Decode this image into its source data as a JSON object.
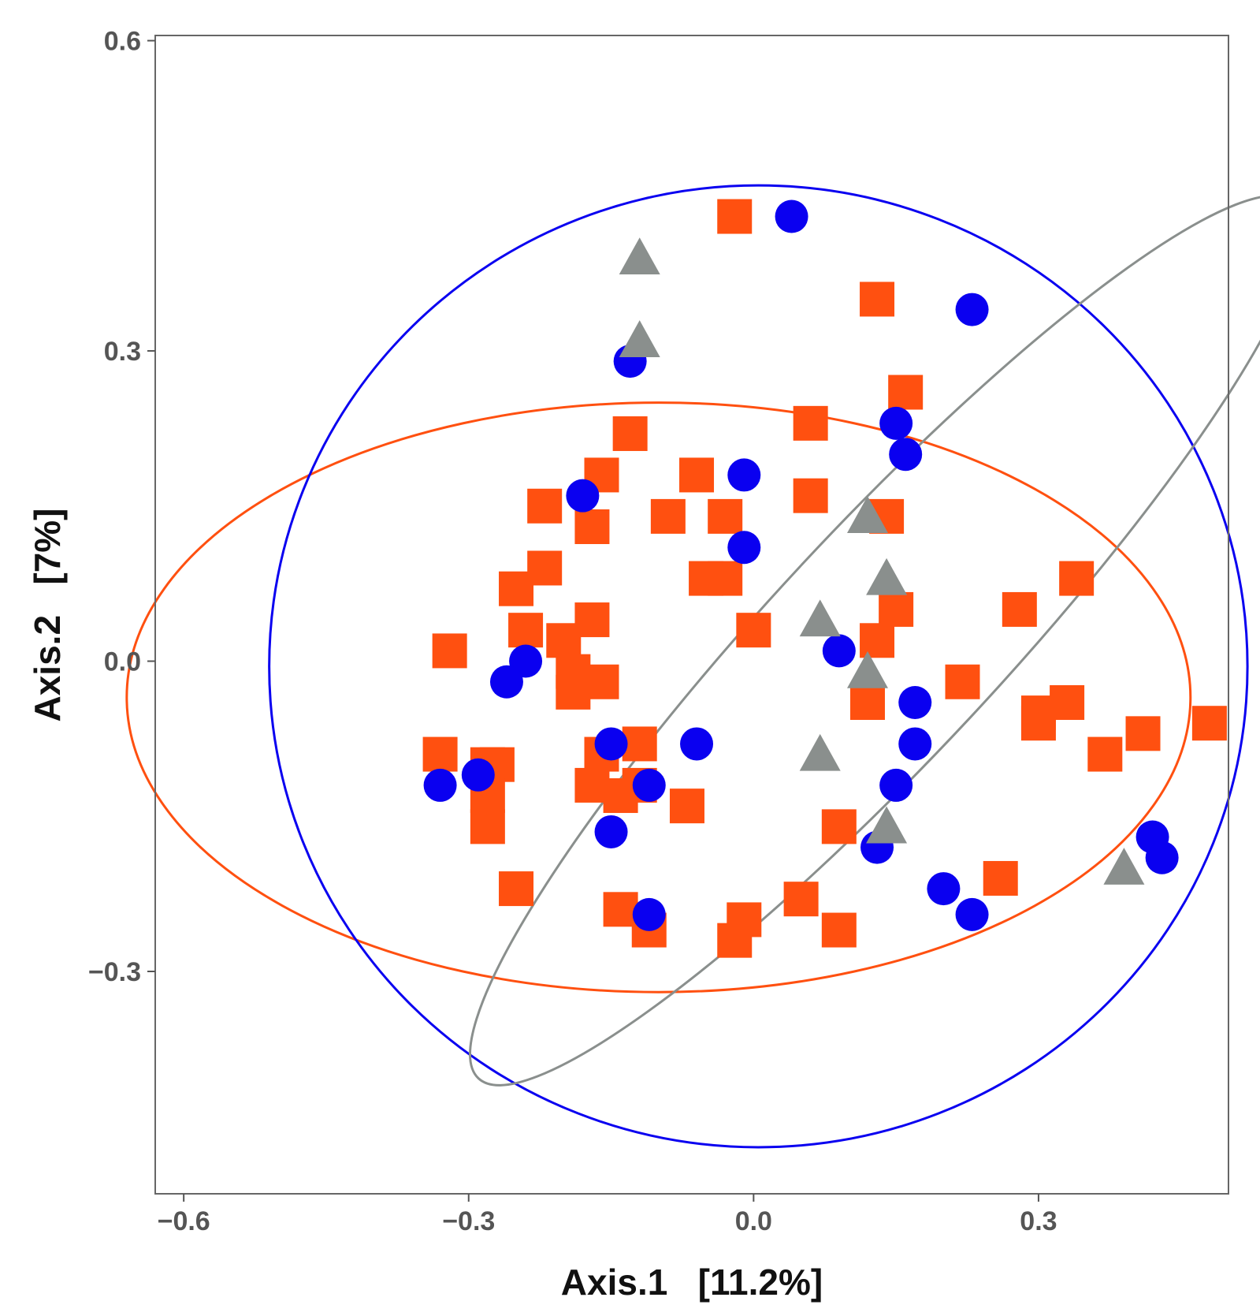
{
  "chart_data": {
    "type": "scatter",
    "title": "",
    "xlabel": "Axis.1   [11.2%]",
    "ylabel": "Axis.2   [7%]",
    "xlim": [
      -0.63,
      0.5
    ],
    "ylim": [
      -0.515,
      0.605
    ],
    "xticks": [
      -0.6,
      -0.3,
      0.0,
      0.3
    ],
    "xtick_labels": [
      "−0.6",
      "−0.3",
      "0.0",
      "0.3"
    ],
    "yticks": [
      0.6,
      0.3,
      0.0,
      -0.3
    ],
    "ytick_labels": [
      "0.6",
      "0.3",
      "0.0",
      "−0.3"
    ],
    "grid": false,
    "legend": "none",
    "series": [
      {
        "name": "square group",
        "marker": "square",
        "color": "#FF5010",
        "points": [
          [
            -0.02,
            0.43
          ],
          [
            0.13,
            0.35
          ],
          [
            0.16,
            0.26
          ],
          [
            0.06,
            0.23
          ],
          [
            -0.13,
            0.22
          ],
          [
            -0.16,
            0.18
          ],
          [
            -0.06,
            0.18
          ],
          [
            0.06,
            0.16
          ],
          [
            -0.22,
            0.15
          ],
          [
            -0.09,
            0.14
          ],
          [
            -0.03,
            0.14
          ],
          [
            0.14,
            0.14
          ],
          [
            -0.17,
            0.13
          ],
          [
            -0.22,
            0.09
          ],
          [
            0.34,
            0.08
          ],
          [
            -0.25,
            0.07
          ],
          [
            -0.05,
            0.08
          ],
          [
            -0.03,
            0.08
          ],
          [
            0.28,
            0.05
          ],
          [
            0.15,
            0.05
          ],
          [
            -0.17,
            0.04
          ],
          [
            -0.24,
            0.03
          ],
          [
            0.0,
            0.03
          ],
          [
            0.13,
            0.02
          ],
          [
            -0.2,
            0.02
          ],
          [
            -0.32,
            0.01
          ],
          [
            -0.19,
            -0.01
          ],
          [
            -0.16,
            -0.02
          ],
          [
            -0.19,
            -0.03
          ],
          [
            0.22,
            -0.02
          ],
          [
            0.12,
            -0.04
          ],
          [
            0.3,
            -0.05
          ],
          [
            0.33,
            -0.04
          ],
          [
            0.3,
            -0.06
          ],
          [
            0.41,
            -0.07
          ],
          [
            0.48,
            -0.06
          ],
          [
            -0.33,
            -0.09
          ],
          [
            -0.28,
            -0.1
          ],
          [
            -0.27,
            -0.1
          ],
          [
            -0.16,
            -0.09
          ],
          [
            -0.12,
            -0.08
          ],
          [
            0.37,
            -0.09
          ],
          [
            -0.17,
            -0.12
          ],
          [
            -0.14,
            -0.13
          ],
          [
            -0.12,
            -0.12
          ],
          [
            -0.07,
            -0.14
          ],
          [
            -0.28,
            -0.13
          ],
          [
            -0.28,
            -0.16
          ],
          [
            0.09,
            -0.16
          ],
          [
            -0.25,
            -0.22
          ],
          [
            0.26,
            -0.21
          ],
          [
            -0.14,
            -0.24
          ],
          [
            0.05,
            -0.23
          ],
          [
            -0.11,
            -0.26
          ],
          [
            -0.01,
            -0.25
          ],
          [
            -0.02,
            -0.27
          ],
          [
            0.09,
            -0.26
          ]
        ]
      },
      {
        "name": "circle group",
        "marker": "circle",
        "color": "#0A00F0",
        "points": [
          [
            0.04,
            0.43
          ],
          [
            0.23,
            0.34
          ],
          [
            -0.13,
            0.29
          ],
          [
            0.15,
            0.23
          ],
          [
            0.16,
            0.2
          ],
          [
            -0.01,
            0.18
          ],
          [
            -0.18,
            0.16
          ],
          [
            -0.01,
            0.11
          ],
          [
            0.09,
            0.01
          ],
          [
            -0.24,
            0.0
          ],
          [
            -0.26,
            -0.02
          ],
          [
            0.17,
            -0.04
          ],
          [
            0.17,
            -0.08
          ],
          [
            -0.06,
            -0.08
          ],
          [
            -0.15,
            -0.08
          ],
          [
            -0.29,
            -0.11
          ],
          [
            -0.33,
            -0.12
          ],
          [
            -0.11,
            -0.12
          ],
          [
            0.15,
            -0.12
          ],
          [
            -0.15,
            -0.165
          ],
          [
            0.13,
            -0.18
          ],
          [
            0.42,
            -0.17
          ],
          [
            0.43,
            -0.19
          ],
          [
            0.2,
            -0.22
          ],
          [
            0.23,
            -0.245
          ],
          [
            -0.11,
            -0.245
          ]
        ]
      },
      {
        "name": "triangle group",
        "marker": "triangle",
        "color": "#8A8F8D",
        "points": [
          [
            -0.12,
            0.39
          ],
          [
            -0.12,
            0.31
          ],
          [
            0.12,
            0.14
          ],
          [
            0.14,
            0.08
          ],
          [
            0.07,
            0.04
          ],
          [
            0.12,
            -0.01
          ],
          [
            0.07,
            -0.09
          ],
          [
            0.14,
            -0.16
          ],
          [
            0.39,
            -0.2
          ]
        ]
      }
    ],
    "ellipses": [
      {
        "name": "square group ellipse",
        "color": "#FF5010",
        "center": [
          -0.1,
          -0.035
        ],
        "semi_axes": [
          0.56,
          0.285
        ],
        "rotation_deg": 0
      },
      {
        "name": "circle group ellipse",
        "color": "#0A00F0",
        "center": [
          0.005,
          -0.005
        ],
        "semi_axes": [
          0.515,
          0.465
        ],
        "rotation_deg": 0
      },
      {
        "name": "triangle group ellipse",
        "color": "#8A8F8D",
        "center": [
          0.14,
          0.02
        ],
        "semi_axes": [
          0.63,
          0.11
        ],
        "rotation_deg": -47
      }
    ]
  }
}
